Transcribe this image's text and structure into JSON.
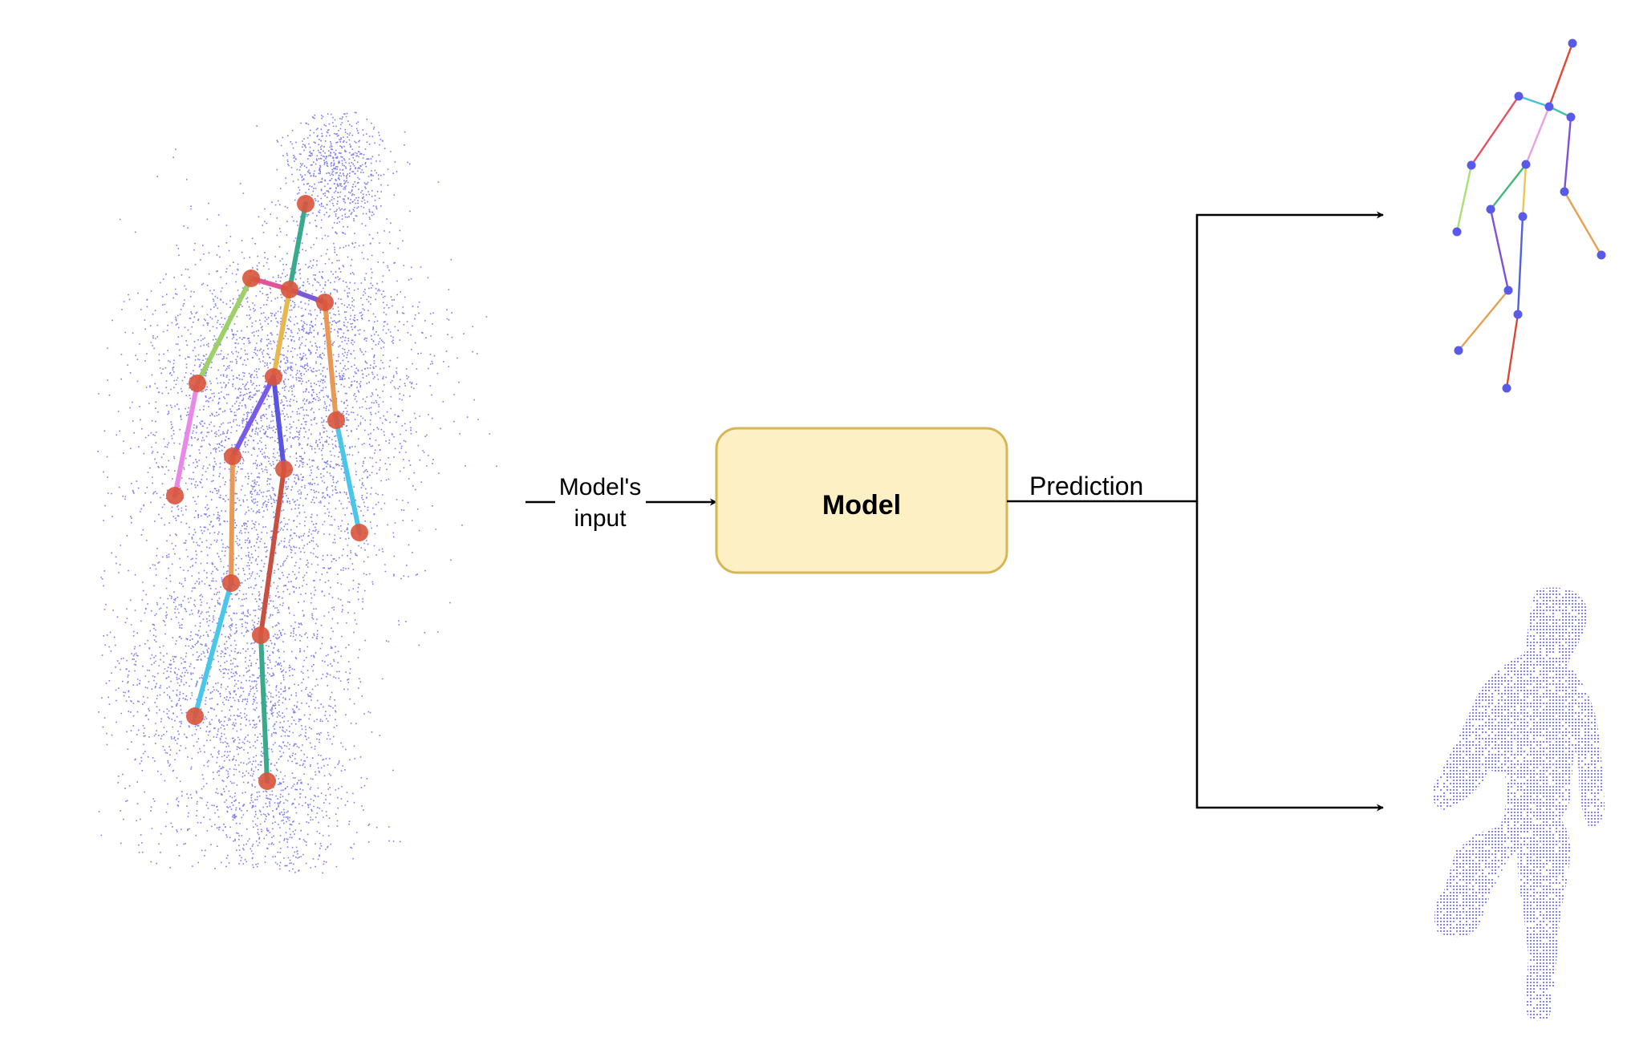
{
  "diagram": {
    "input_label_line1": "Model's",
    "input_label_line2": "input",
    "model_label": "Model",
    "prediction_label": "Prediction"
  },
  "colors": {
    "background": "#ffffff",
    "model_fill": "#fdf0c4",
    "model_stroke": "#d6b656",
    "point_cloud": "#5b5be6",
    "joint_input": "#d9533b",
    "joint_output": "#5a5ae8",
    "arrow": "#000000"
  },
  "icons": {
    "input": "skeleton-over-point-cloud",
    "output_top": "predicted-skeleton",
    "output_bottom": "predicted-body-point-cloud"
  }
}
